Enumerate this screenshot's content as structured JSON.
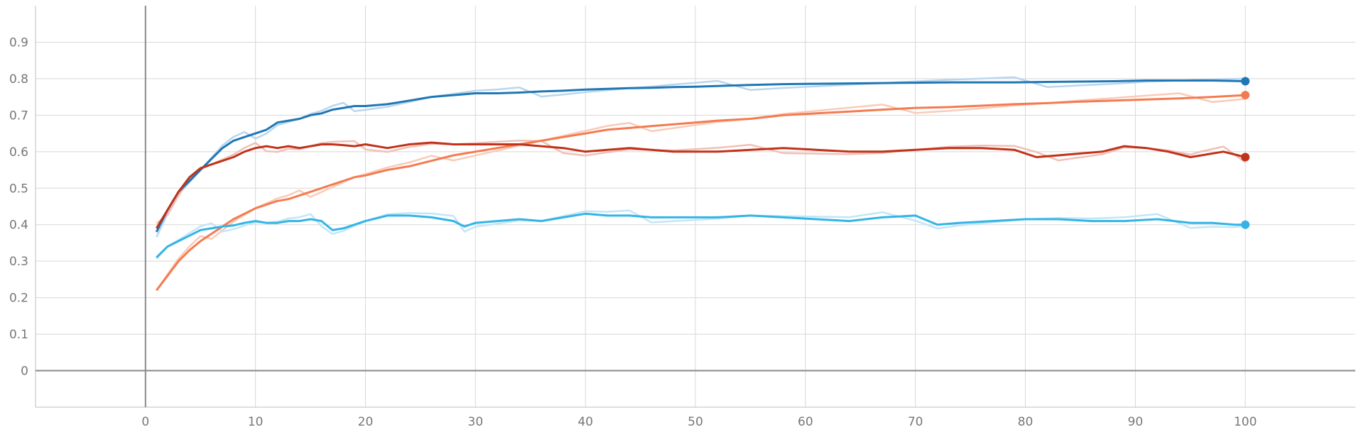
{
  "chart_data": {
    "type": "line",
    "title": "",
    "xlabel": "",
    "ylabel": "",
    "xlim": [
      -10,
      110
    ],
    "ylim": [
      -0.1,
      1.0
    ],
    "x_ticks": [
      "0",
      "10",
      "20",
      "30",
      "40",
      "50",
      "60",
      "70",
      "80",
      "90",
      "100"
    ],
    "y_ticks": [
      "0",
      "0.1",
      "0.2",
      "0.3",
      "0.4",
      "0.5",
      "0.6",
      "0.7",
      "0.8",
      "0.9"
    ],
    "grid": true,
    "series": [
      {
        "color": "#1f77b4",
        "raw_color": "#b9d6ee",
        "end_marker": true,
        "values": [
          [
            1,
            0.38
          ],
          [
            2,
            0.44
          ],
          [
            3,
            0.49
          ],
          [
            4,
            0.52
          ],
          [
            5,
            0.55
          ],
          [
            6,
            0.58
          ],
          [
            7,
            0.61
          ],
          [
            8,
            0.63
          ],
          [
            9,
            0.64
          ],
          [
            10,
            0.65
          ],
          [
            11,
            0.66
          ],
          [
            12,
            0.68
          ],
          [
            13,
            0.685
          ],
          [
            14,
            0.69
          ],
          [
            15,
            0.7
          ],
          [
            16,
            0.705
          ],
          [
            17,
            0.715
          ],
          [
            18,
            0.72
          ],
          [
            19,
            0.725
          ],
          [
            20,
            0.725
          ],
          [
            22,
            0.73
          ],
          [
            24,
            0.74
          ],
          [
            26,
            0.75
          ],
          [
            28,
            0.755
          ],
          [
            30,
            0.76
          ],
          [
            32,
            0.76
          ],
          [
            34,
            0.762
          ],
          [
            36,
            0.765
          ],
          [
            38,
            0.767
          ],
          [
            40,
            0.77
          ],
          [
            42,
            0.772
          ],
          [
            44,
            0.774
          ],
          [
            46,
            0.775
          ],
          [
            48,
            0.777
          ],
          [
            50,
            0.778
          ],
          [
            52,
            0.78
          ],
          [
            55,
            0.783
          ],
          [
            58,
            0.785
          ],
          [
            61,
            0.786
          ],
          [
            64,
            0.787
          ],
          [
            67,
            0.788
          ],
          [
            70,
            0.789
          ],
          [
            73,
            0.79
          ],
          [
            76,
            0.79
          ],
          [
            79,
            0.79
          ],
          [
            82,
            0.791
          ],
          [
            85,
            0.792
          ],
          [
            88,
            0.793
          ],
          [
            91,
            0.795
          ],
          [
            94,
            0.795
          ],
          [
            97,
            0.795
          ],
          [
            100,
            0.793
          ]
        ]
      },
      {
        "color": "#f47b50",
        "raw_color": "#f9cbb8",
        "end_marker": true,
        "values": [
          [
            1,
            0.22
          ],
          [
            2,
            0.26
          ],
          [
            3,
            0.3
          ],
          [
            4,
            0.33
          ],
          [
            5,
            0.355
          ],
          [
            6,
            0.375
          ],
          [
            7,
            0.395
          ],
          [
            8,
            0.415
          ],
          [
            9,
            0.43
          ],
          [
            10,
            0.445
          ],
          [
            11,
            0.455
          ],
          [
            12,
            0.465
          ],
          [
            13,
            0.47
          ],
          [
            14,
            0.48
          ],
          [
            15,
            0.49
          ],
          [
            16,
            0.5
          ],
          [
            17,
            0.51
          ],
          [
            18,
            0.52
          ],
          [
            19,
            0.53
          ],
          [
            20,
            0.535
          ],
          [
            22,
            0.55
          ],
          [
            24,
            0.56
          ],
          [
            26,
            0.575
          ],
          [
            28,
            0.59
          ],
          [
            30,
            0.6
          ],
          [
            32,
            0.61
          ],
          [
            34,
            0.62
          ],
          [
            36,
            0.63
          ],
          [
            38,
            0.64
          ],
          [
            40,
            0.65
          ],
          [
            42,
            0.66
          ],
          [
            44,
            0.665
          ],
          [
            46,
            0.67
          ],
          [
            48,
            0.675
          ],
          [
            50,
            0.68
          ],
          [
            52,
            0.685
          ],
          [
            55,
            0.69
          ],
          [
            58,
            0.7
          ],
          [
            61,
            0.705
          ],
          [
            64,
            0.71
          ],
          [
            67,
            0.715
          ],
          [
            70,
            0.72
          ],
          [
            73,
            0.722
          ],
          [
            76,
            0.726
          ],
          [
            79,
            0.73
          ],
          [
            82,
            0.733
          ],
          [
            85,
            0.737
          ],
          [
            88,
            0.74
          ],
          [
            91,
            0.743
          ],
          [
            94,
            0.746
          ],
          [
            97,
            0.75
          ],
          [
            100,
            0.755
          ]
        ]
      },
      {
        "color": "#c0321a",
        "raw_color": "#f0c0b6",
        "end_marker": true,
        "values": [
          [
            1,
            0.39
          ],
          [
            2,
            0.44
          ],
          [
            3,
            0.49
          ],
          [
            4,
            0.53
          ],
          [
            5,
            0.555
          ],
          [
            6,
            0.565
          ],
          [
            7,
            0.575
          ],
          [
            8,
            0.585
          ],
          [
            9,
            0.6
          ],
          [
            10,
            0.61
          ],
          [
            11,
            0.615
          ],
          [
            12,
            0.61
          ],
          [
            13,
            0.615
          ],
          [
            14,
            0.61
          ],
          [
            15,
            0.615
          ],
          [
            16,
            0.62
          ],
          [
            17,
            0.62
          ],
          [
            18,
            0.618
          ],
          [
            19,
            0.615
          ],
          [
            20,
            0.62
          ],
          [
            22,
            0.61
          ],
          [
            24,
            0.62
          ],
          [
            26,
            0.625
          ],
          [
            28,
            0.62
          ],
          [
            30,
            0.62
          ],
          [
            32,
            0.62
          ],
          [
            34,
            0.62
          ],
          [
            36,
            0.615
          ],
          [
            38,
            0.61
          ],
          [
            40,
            0.6
          ],
          [
            42,
            0.605
          ],
          [
            44,
            0.61
          ],
          [
            46,
            0.605
          ],
          [
            48,
            0.6
          ],
          [
            50,
            0.6
          ],
          [
            52,
            0.6
          ],
          [
            55,
            0.605
          ],
          [
            58,
            0.61
          ],
          [
            61,
            0.605
          ],
          [
            64,
            0.6
          ],
          [
            67,
            0.6
          ],
          [
            70,
            0.605
          ],
          [
            73,
            0.61
          ],
          [
            76,
            0.61
          ],
          [
            79,
            0.605
          ],
          [
            81,
            0.585
          ],
          [
            83,
            0.59
          ],
          [
            85,
            0.595
          ],
          [
            87,
            0.6
          ],
          [
            89,
            0.615
          ],
          [
            91,
            0.61
          ],
          [
            93,
            0.6
          ],
          [
            95,
            0.585
          ],
          [
            96,
            0.59
          ],
          [
            98,
            0.6
          ],
          [
            100,
            0.585
          ]
        ]
      },
      {
        "color": "#33b4e6",
        "raw_color": "#c2e6f5",
        "end_marker": true,
        "values": [
          [
            1,
            0.31
          ],
          [
            2,
            0.34
          ],
          [
            3,
            0.355
          ],
          [
            4,
            0.37
          ],
          [
            5,
            0.385
          ],
          [
            6,
            0.39
          ],
          [
            7,
            0.395
          ],
          [
            8,
            0.398
          ],
          [
            9,
            0.405
          ],
          [
            10,
            0.41
          ],
          [
            11,
            0.405
          ],
          [
            12,
            0.405
          ],
          [
            13,
            0.41
          ],
          [
            14,
            0.41
          ],
          [
            15,
            0.415
          ],
          [
            16,
            0.41
          ],
          [
            17,
            0.385
          ],
          [
            18,
            0.39
          ],
          [
            19,
            0.4
          ],
          [
            20,
            0.41
          ],
          [
            22,
            0.425
          ],
          [
            24,
            0.425
          ],
          [
            26,
            0.42
          ],
          [
            28,
            0.41
          ],
          [
            29,
            0.395
          ],
          [
            30,
            0.405
          ],
          [
            32,
            0.41
          ],
          [
            34,
            0.415
          ],
          [
            36,
            0.41
          ],
          [
            38,
            0.42
          ],
          [
            40,
            0.43
          ],
          [
            42,
            0.425
          ],
          [
            44,
            0.425
          ],
          [
            46,
            0.42
          ],
          [
            48,
            0.42
          ],
          [
            50,
            0.42
          ],
          [
            52,
            0.42
          ],
          [
            55,
            0.425
          ],
          [
            58,
            0.42
          ],
          [
            61,
            0.415
          ],
          [
            64,
            0.41
          ],
          [
            67,
            0.42
          ],
          [
            70,
            0.425
          ],
          [
            72,
            0.4
          ],
          [
            74,
            0.405
          ],
          [
            77,
            0.41
          ],
          [
            80,
            0.415
          ],
          [
            83,
            0.415
          ],
          [
            86,
            0.41
          ],
          [
            89,
            0.41
          ],
          [
            92,
            0.415
          ],
          [
            95,
            0.405
          ],
          [
            97,
            0.405
          ],
          [
            99,
            0.4
          ],
          [
            100,
            0.4
          ]
        ]
      }
    ]
  }
}
